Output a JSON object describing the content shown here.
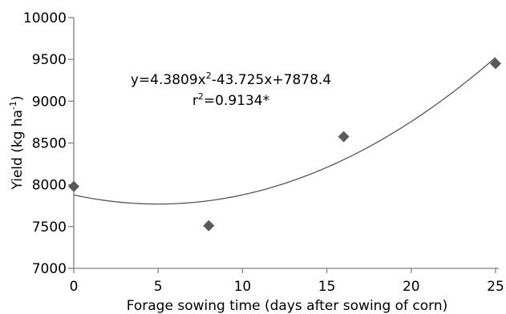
{
  "chart_data": {
    "type": "scatter",
    "title": "",
    "xlabel": "Forage sowing time (days after sowing of corn)",
    "ylabel_main": "Yield (kg ha",
    "ylabel_sup": "-1",
    "ylabel_close": ")",
    "xlim": [
      0,
      25
    ],
    "ylim": [
      7000,
      10000
    ],
    "x_ticks": [
      0,
      5,
      10,
      15,
      20,
      25
    ],
    "x_tick_labels": [
      "0",
      "5",
      "10",
      "15",
      "20",
      "25"
    ],
    "y_ticks": [
      7000,
      7500,
      8000,
      8500,
      9000,
      9500,
      10000
    ],
    "y_tick_labels": [
      "7000",
      "7500",
      "8000",
      "8500",
      "9000",
      "9500",
      "10000"
    ],
    "grid": false,
    "series": [
      {
        "points": [
          {
            "x": 0,
            "y": 7980
          },
          {
            "x": 8,
            "y": 7510
          },
          {
            "x": 16,
            "y": 8575
          },
          {
            "x": 25,
            "y": 9450
          }
        ],
        "marker": "diamond",
        "color": "#595959"
      }
    ],
    "trendline": {
      "type": "polynomial",
      "coefficients": {
        "a": 4.3809,
        "b": -43.725,
        "c": 7878.4
      },
      "color": "#555555"
    },
    "annotation": {
      "eq_part1": "y=4.3809x",
      "eq_sup1": "2",
      "eq_part2": "-43.725x+7878.4",
      "r2_part1": "r",
      "r2_sup": "2",
      "r2_part2": "=0.9134*"
    }
  }
}
